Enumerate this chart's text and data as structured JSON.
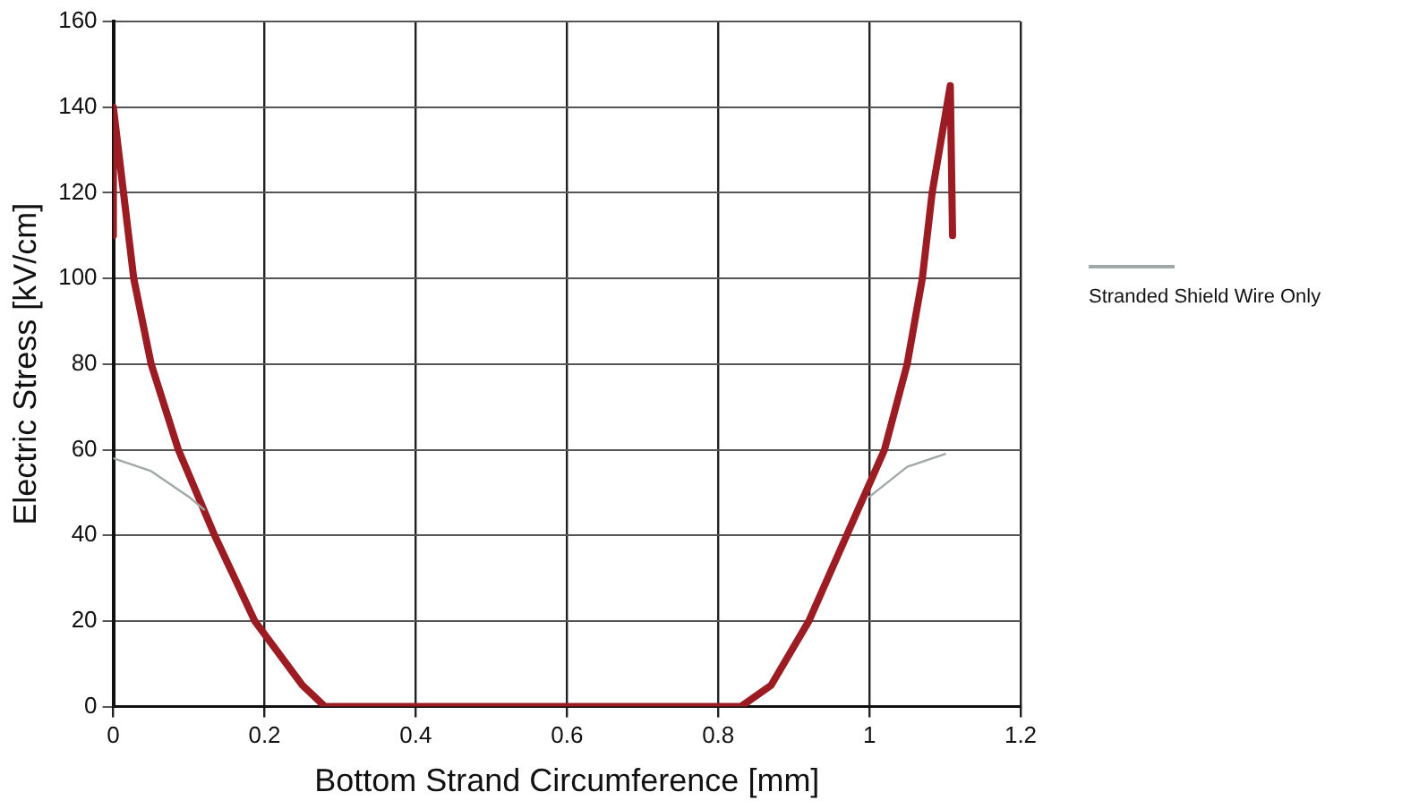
{
  "chart_data": {
    "type": "line",
    "xlabel": "Bottom Strand Circumference [mm]",
    "ylabel": "Electric Stress [kV/cm]",
    "xlim": [
      0,
      1.2
    ],
    "xticks": [
      0,
      0.2,
      0.4,
      0.6,
      0.8,
      1,
      1.2
    ],
    "ylim": [
      0,
      160
    ],
    "yticks": [
      0,
      20,
      40,
      60,
      80,
      100,
      120,
      140,
      160
    ],
    "grid": true,
    "legend": "right",
    "marker": "none",
    "series": [
      {
        "name": "Stranded Shield Wire Only",
        "color": "#a0a8a8",
        "x": [
          0,
          0.05,
          0.1,
          0.12,
          null,
          1.0,
          1.05,
          1.1
        ],
        "values": [
          58,
          55,
          49,
          46,
          null,
          49,
          56,
          59
        ]
      },
      {
        "color": "#9b1c22",
        "x": [
          0,
          0,
          0.027,
          0.05,
          0.086,
          0.134,
          0.187,
          0.25,
          0.28,
          0.3,
          0.5,
          0.7,
          0.83,
          0.87,
          0.92,
          0.97,
          1.02,
          1.05,
          1.07,
          1.083,
          1.107,
          1.11
        ],
        "values": [
          110,
          140,
          100,
          80,
          60,
          40,
          20,
          5,
          0,
          0,
          0,
          0,
          0,
          5,
          20,
          40,
          60,
          80,
          100,
          120,
          145,
          110
        ]
      }
    ]
  }
}
